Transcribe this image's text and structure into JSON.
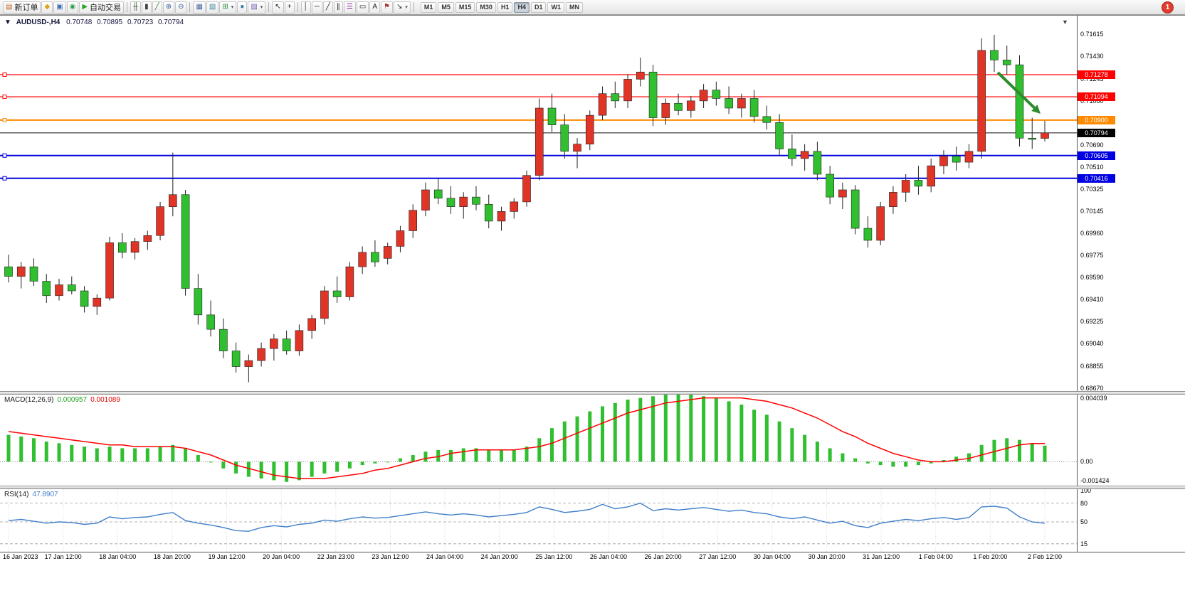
{
  "toolbar": {
    "buttons": [
      {
        "name": "new-order",
        "glyph": "▤",
        "color": "#c06020",
        "label": "新订单"
      },
      {
        "name": "market-watch",
        "glyph": "◆",
        "color": "#d9a61c"
      },
      {
        "name": "data-window",
        "glyph": "▣",
        "color": "#3b6fb5"
      },
      {
        "name": "community",
        "glyph": "◉",
        "color": "#2f9e50"
      },
      {
        "name": "auto-trading",
        "glyph": "▶",
        "color": "#27a527",
        "label": "自动交易"
      },
      {
        "sep": true
      },
      {
        "name": "bar-chart",
        "glyph": "╫",
        "color": "#355535"
      },
      {
        "name": "candlestick-chart",
        "glyph": "▮",
        "color": "#404040"
      },
      {
        "name": "line-chart",
        "glyph": "╱",
        "color": "#2e7d32"
      },
      {
        "name": "zoom-in",
        "glyph": "⊕",
        "color": "#31609f"
      },
      {
        "name": "zoom-out",
        "glyph": "⊖",
        "color": "#31609f"
      },
      {
        "sep": true
      },
      {
        "name": "tile-windows",
        "glyph": "▦",
        "color": "#44639e"
      },
      {
        "name": "auto-arrange",
        "glyph": "▧",
        "color": "#44889e"
      },
      {
        "name": "new-chart",
        "glyph": "⊞",
        "color": "#2f8f3f",
        "dropdown": true
      },
      {
        "name": "refresh-clock",
        "glyph": "●",
        "color": "#2e7da0"
      },
      {
        "name": "templates",
        "glyph": "▨",
        "color": "#7a5ab5",
        "dropdown": true
      },
      {
        "sep": true
      },
      {
        "name": "cursor",
        "glyph": "↖",
        "color": "#222222"
      },
      {
        "name": "crosshair",
        "glyph": "+",
        "color": "#222222"
      },
      {
        "sep": true
      },
      {
        "name": "vertical-line",
        "glyph": "│",
        "color": "#222222"
      },
      {
        "name": "horizontal-line",
        "glyph": "─",
        "color": "#222222"
      },
      {
        "name": "trendline",
        "glyph": "╱",
        "color": "#222222"
      },
      {
        "name": "equidistant-channel",
        "glyph": "∥",
        "color": "#222222"
      },
      {
        "name": "fibonacci-retracement",
        "glyph": "☰",
        "color": "#88308f"
      },
      {
        "name": "shapes",
        "glyph": "▭",
        "color": "#222222"
      },
      {
        "name": "text",
        "glyph": "A",
        "color": "#222222"
      },
      {
        "name": "text-label",
        "glyph": "⚑",
        "color": "#b03030"
      },
      {
        "name": "arrows",
        "glyph": "↘",
        "color": "#222222",
        "dropdown": true
      },
      {
        "sep": true
      }
    ],
    "timeframes": [
      "M1",
      "M5",
      "M15",
      "M30",
      "H1",
      "H4",
      "D1",
      "W1",
      "MN"
    ],
    "active_timeframe": "H4",
    "notification_badge": "1"
  },
  "chart": {
    "header_arrow": "▼",
    "symbol_period": "AUDUSD-,H4",
    "open": "0.70748",
    "high": "0.70895",
    "low": "0.70723",
    "close": "0.70794",
    "scroll_marker": "▼",
    "price_axis_labels": [
      "0.71615",
      "0.71430",
      "0.71245",
      "0.71060",
      "0.70690",
      "0.70510",
      "0.70325",
      "0.70145",
      "0.69960",
      "0.69775",
      "0.69590",
      "0.69410",
      "0.69225",
      "0.69040",
      "0.68855",
      "0.68670"
    ],
    "time_axis_labels": [
      "16 Jan 2023",
      "17 Jan 12:00",
      "18 Jan 04:00",
      "18 Jan 20:00",
      "19 Jan 12:00",
      "20 Jan 04:00",
      "22 Jan 23:00",
      "23 Jan 12:00",
      "24 Jan 04:00",
      "24 Jan 20:00",
      "25 Jan 12:00",
      "26 Jan 04:00",
      "26 Jan 20:00",
      "27 Jan 12:00",
      "30 Jan 04:00",
      "30 Jan 20:00",
      "31 Jan 12:00",
      "1 Feb 04:00",
      "1 Feb 20:00",
      "2 Feb 12:00"
    ],
    "price_lines": [
      {
        "price": 0.71278,
        "label": "0.71278",
        "color": "#ff0000",
        "width": 1.3
      },
      {
        "price": 0.71094,
        "label": "0.71094",
        "color": "#ff0000",
        "width": 1.3
      },
      {
        "price": 0.709,
        "label": "0.70900",
        "color": "#ff8a00",
        "width": 2
      },
      {
        "price": 0.70605,
        "label": "0.70605",
        "color": "#0000e0",
        "width": 2
      },
      {
        "price": 0.70416,
        "label": "0.70416",
        "color": "#0000e0",
        "width": 2
      }
    ],
    "bid_line": {
      "price": 0.70794,
      "label": "0.70794",
      "color": "#000000"
    },
    "trend_arrow": {
      "color": "#2e8b2e"
    }
  },
  "macd": {
    "name": "MACD(12,26,9)",
    "value": "0.000957",
    "signal_value": "0.001089",
    "axis_labels": [
      "0.004039",
      "0.00",
      "-0.001424"
    ],
    "hist_color": "#2fbf2f",
    "signal_color": "#ff0000"
  },
  "rsi": {
    "name": "RSI(14)",
    "value": "47.8907",
    "axis_labels": [
      "100",
      "80",
      "50",
      "15"
    ],
    "axis_values": [
      100,
      80,
      50,
      15
    ],
    "levels": [
      80,
      50,
      15
    ],
    "line_color": "#3f7fca"
  },
  "chart_data": [
    {
      "type": "candlestick",
      "title": "AUDUSD- H4",
      "up_color": "#e03426",
      "down_color": "#2fbf2f",
      "ylim": [
        0.6862,
        0.7166
      ],
      "x_labels": [
        "16 Jan 2023",
        "17 Jan 12:00",
        "18 Jan 04:00",
        "18 Jan 20:00",
        "19 Jan 12:00",
        "20 Jan 04:00",
        "22 Jan 23:00",
        "23 Jan 12:00",
        "24 Jan 04:00",
        "24 Jan 20:00",
        "25 Jan 12:00",
        "26 Jan 04:00",
        "26 Jan 20:00",
        "27 Jan 12:00",
        "30 Jan 04:00",
        "30 Jan 20:00",
        "31 Jan 12:00",
        "1 Feb 04:00",
        "1 Feb 20:00",
        "2 Feb 12:00"
      ],
      "candles": [
        [
          0.6968,
          0.6978,
          0.6955,
          0.696
        ],
        [
          0.696,
          0.6972,
          0.695,
          0.6968
        ],
        [
          0.6968,
          0.6975,
          0.6952,
          0.6956
        ],
        [
          0.6956,
          0.6962,
          0.6938,
          0.6944
        ],
        [
          0.6944,
          0.6958,
          0.694,
          0.6953
        ],
        [
          0.6953,
          0.696,
          0.6945,
          0.6948
        ],
        [
          0.6948,
          0.6952,
          0.693,
          0.6935
        ],
        [
          0.6935,
          0.6945,
          0.6928,
          0.6942
        ],
        [
          0.6942,
          0.6993,
          0.694,
          0.6988
        ],
        [
          0.6988,
          0.6996,
          0.6975,
          0.698
        ],
        [
          0.698,
          0.6992,
          0.6974,
          0.6989
        ],
        [
          0.6989,
          0.6998,
          0.6982,
          0.6994
        ],
        [
          0.6994,
          0.7022,
          0.699,
          0.7018
        ],
        [
          0.7018,
          0.7063,
          0.701,
          0.7028
        ],
        [
          0.7028,
          0.7032,
          0.6944,
          0.695
        ],
        [
          0.695,
          0.6962,
          0.692,
          0.6928
        ],
        [
          0.6928,
          0.694,
          0.691,
          0.6916
        ],
        [
          0.6916,
          0.6925,
          0.6892,
          0.6898
        ],
        [
          0.6898,
          0.6905,
          0.688,
          0.6885
        ],
        [
          0.6885,
          0.6895,
          0.6872,
          0.689
        ],
        [
          0.689,
          0.6905,
          0.6885,
          0.69
        ],
        [
          0.69,
          0.6912,
          0.689,
          0.6908
        ],
        [
          0.6908,
          0.6915,
          0.6895,
          0.6898
        ],
        [
          0.6898,
          0.692,
          0.6894,
          0.6915
        ],
        [
          0.6915,
          0.6928,
          0.6908,
          0.6925
        ],
        [
          0.6925,
          0.6952,
          0.692,
          0.6948
        ],
        [
          0.6948,
          0.696,
          0.6938,
          0.6943
        ],
        [
          0.6943,
          0.6972,
          0.694,
          0.6968
        ],
        [
          0.6968,
          0.6985,
          0.6962,
          0.698
        ],
        [
          0.698,
          0.699,
          0.6968,
          0.6972
        ],
        [
          0.6975,
          0.6988,
          0.697,
          0.6985
        ],
        [
          0.6985,
          0.7002,
          0.698,
          0.6998
        ],
        [
          0.6998,
          0.702,
          0.6992,
          0.7015
        ],
        [
          0.7015,
          0.7038,
          0.701,
          0.7032
        ],
        [
          0.7032,
          0.7042,
          0.702,
          0.7025
        ],
        [
          0.7025,
          0.7035,
          0.7012,
          0.7018
        ],
        [
          0.7018,
          0.703,
          0.7008,
          0.7026
        ],
        [
          0.7026,
          0.7035,
          0.7015,
          0.702
        ],
        [
          0.702,
          0.7028,
          0.7,
          0.7006
        ],
        [
          0.7006,
          0.7018,
          0.6998,
          0.7014
        ],
        [
          0.7014,
          0.7025,
          0.7008,
          0.7022
        ],
        [
          0.7022,
          0.7048,
          0.7018,
          0.7044
        ],
        [
          0.7044,
          0.7108,
          0.704,
          0.71
        ],
        [
          0.71,
          0.7112,
          0.708,
          0.7086
        ],
        [
          0.7086,
          0.7095,
          0.7058,
          0.7064
        ],
        [
          0.7064,
          0.7075,
          0.705,
          0.707
        ],
        [
          0.707,
          0.7098,
          0.7065,
          0.7094
        ],
        [
          0.7094,
          0.7118,
          0.709,
          0.7112
        ],
        [
          0.7112,
          0.7122,
          0.71,
          0.7106
        ],
        [
          0.7106,
          0.7128,
          0.71,
          0.7124
        ],
        [
          0.7124,
          0.7142,
          0.7118,
          0.713
        ],
        [
          0.713,
          0.7136,
          0.7085,
          0.7092
        ],
        [
          0.7092,
          0.7108,
          0.7086,
          0.7104
        ],
        [
          0.7104,
          0.7112,
          0.7094,
          0.7098
        ],
        [
          0.7098,
          0.711,
          0.7092,
          0.7106
        ],
        [
          0.7106,
          0.712,
          0.71,
          0.7115
        ],
        [
          0.7115,
          0.7122,
          0.7102,
          0.7108
        ],
        [
          0.7108,
          0.7118,
          0.7095,
          0.71
        ],
        [
          0.71,
          0.7112,
          0.7092,
          0.7108
        ],
        [
          0.7108,
          0.7115,
          0.7088,
          0.7093
        ],
        [
          0.7093,
          0.7102,
          0.7082,
          0.7088
        ],
        [
          0.7088,
          0.7095,
          0.706,
          0.7066
        ],
        [
          0.7066,
          0.7078,
          0.7052,
          0.7058
        ],
        [
          0.7058,
          0.707,
          0.7048,
          0.7064
        ],
        [
          0.7064,
          0.7072,
          0.704,
          0.7045
        ],
        [
          0.7045,
          0.7052,
          0.702,
          0.7026
        ],
        [
          0.7026,
          0.7038,
          0.7016,
          0.7032
        ],
        [
          0.7032,
          0.7036,
          0.6995,
          0.7
        ],
        [
          0.7,
          0.701,
          0.6984,
          0.699
        ],
        [
          0.699,
          0.7022,
          0.6986,
          0.7018
        ],
        [
          0.7018,
          0.7035,
          0.7012,
          0.703
        ],
        [
          0.703,
          0.7045,
          0.7022,
          0.704
        ],
        [
          0.704,
          0.7052,
          0.7028,
          0.7035
        ],
        [
          0.7035,
          0.7058,
          0.703,
          0.7052
        ],
        [
          0.7052,
          0.7065,
          0.7045,
          0.706
        ],
        [
          0.706,
          0.7068,
          0.7048,
          0.7055
        ],
        [
          0.7055,
          0.707,
          0.705,
          0.7064
        ],
        [
          0.7064,
          0.7158,
          0.7058,
          0.7148
        ],
        [
          0.7148,
          0.7161,
          0.713,
          0.714
        ],
        [
          0.714,
          0.7152,
          0.7128,
          0.7136
        ],
        [
          0.7136,
          0.7144,
          0.7068,
          0.7075
        ],
        [
          0.7075,
          0.7092,
          0.7066,
          0.7074
        ],
        [
          0.70748,
          0.70895,
          0.70723,
          0.70794
        ]
      ]
    },
    {
      "type": "bar",
      "title": "MACD(12,26,9)",
      "ylim": [
        -0.001424,
        0.004039
      ],
      "values": [
        0.0016,
        0.0015,
        0.0014,
        0.0012,
        0.0011,
        0.001,
        0.0009,
        0.0008,
        0.0009,
        0.0008,
        0.0008,
        0.0008,
        0.0009,
        0.001,
        0.0008,
        0.0004,
        0.0,
        -0.0004,
        -0.0007,
        -0.0009,
        -0.001,
        -0.0011,
        -0.0012,
        -0.0011,
        -0.0009,
        -0.0007,
        -0.0006,
        -0.0004,
        -0.0002,
        -0.0001,
        0.0,
        0.0002,
        0.0004,
        0.0006,
        0.0007,
        0.0007,
        0.0008,
        0.0008,
        0.0007,
        0.0007,
        0.0007,
        0.0009,
        0.0014,
        0.002,
        0.0024,
        0.0027,
        0.003,
        0.0033,
        0.0035,
        0.0037,
        0.0038,
        0.0039,
        0.004,
        0.004,
        0.004,
        0.0039,
        0.0038,
        0.0036,
        0.0034,
        0.0031,
        0.0028,
        0.0024,
        0.002,
        0.0016,
        0.0012,
        0.0008,
        0.0005,
        0.0002,
        -0.0001,
        -0.0002,
        -0.0003,
        -0.0003,
        -0.0002,
        -0.0001,
        0.0001,
        0.0003,
        0.0005,
        0.001,
        0.0013,
        0.0014,
        0.0013,
        0.0011,
        0.000957
      ],
      "series": [
        {
          "name": "signal",
          "values": [
            0.0018,
            0.0017,
            0.0016,
            0.0015,
            0.0014,
            0.0013,
            0.0012,
            0.0011,
            0.001,
            0.001,
            0.0009,
            0.0009,
            0.0009,
            0.0009,
            0.0008,
            0.0006,
            0.0004,
            0.0001,
            -0.0002,
            -0.0004,
            -0.0006,
            -0.0008,
            -0.0009,
            -0.001,
            -0.001,
            -0.001,
            -0.0009,
            -0.0008,
            -0.0007,
            -0.0005,
            -0.0004,
            -0.0002,
            0.0,
            0.0002,
            0.0003,
            0.0005,
            0.0006,
            0.0007,
            0.0007,
            0.0007,
            0.0007,
            0.0008,
            0.0009,
            0.0011,
            0.0014,
            0.0017,
            0.002,
            0.0023,
            0.0026,
            0.0029,
            0.0031,
            0.0033,
            0.0035,
            0.0036,
            0.0037,
            0.0038,
            0.0038,
            0.0038,
            0.0038,
            0.0037,
            0.0036,
            0.0034,
            0.0032,
            0.0029,
            0.0026,
            0.0022,
            0.0018,
            0.0015,
            0.0011,
            0.0008,
            0.0005,
            0.0003,
            0.0001,
            0.0,
            0.0,
            0.0001,
            0.0002,
            0.0004,
            0.0006,
            0.0008,
            0.001,
            0.001089,
            0.001089
          ]
        }
      ]
    },
    {
      "type": "line",
      "title": "RSI(14)",
      "ylim": [
        0,
        100
      ],
      "levels": [
        80,
        50,
        15
      ],
      "values": [
        52,
        54,
        51,
        48,
        50,
        49,
        46,
        48,
        58,
        55,
        57,
        58,
        62,
        65,
        52,
        48,
        45,
        41,
        36,
        35,
        41,
        44,
        42,
        46,
        48,
        53,
        51,
        55,
        58,
        56,
        57,
        60,
        63,
        66,
        63,
        61,
        63,
        61,
        58,
        60,
        62,
        65,
        74,
        70,
        65,
        67,
        70,
        78,
        71,
        74,
        80,
        68,
        71,
        69,
        71,
        73,
        70,
        67,
        69,
        65,
        63,
        58,
        55,
        58,
        53,
        48,
        51,
        44,
        41,
        48,
        51,
        54,
        52,
        55,
        57,
        54,
        57,
        74,
        75,
        72,
        58,
        50,
        47.89
      ]
    }
  ]
}
